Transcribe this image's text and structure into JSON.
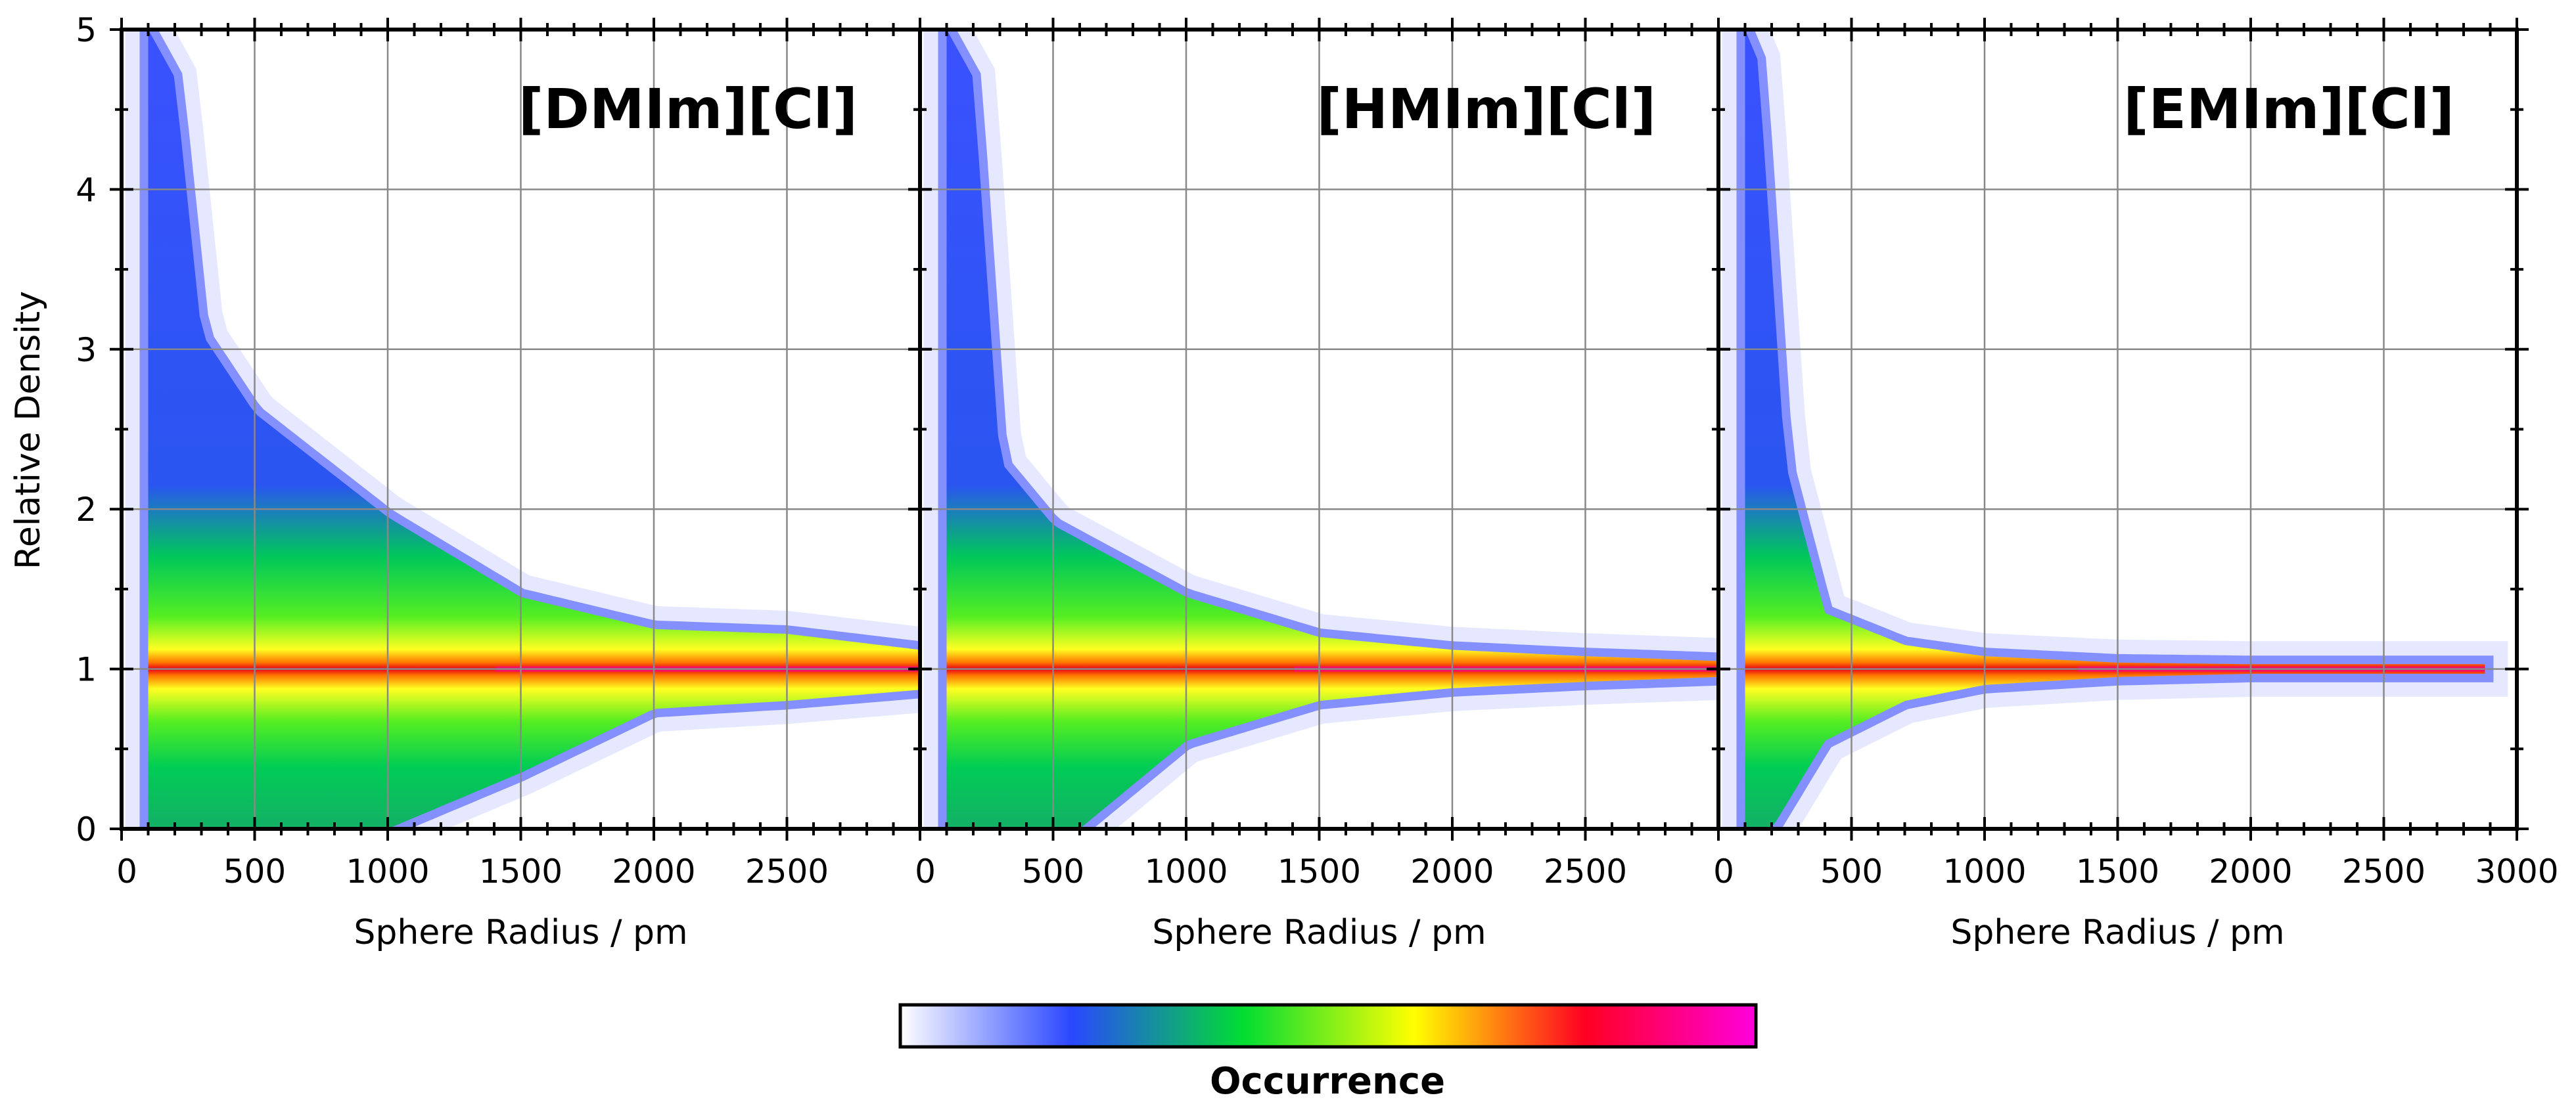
{
  "chart_data": [
    {
      "type": "heatmap",
      "title": "[DMIm][Cl]",
      "xlabel": "Sphere Radius / pm",
      "ylabel": "Relative Density",
      "xlim": [
        0,
        3000
      ],
      "ylim": [
        0,
        5
      ],
      "x_ticks": [
        0,
        500,
        1000,
        1500,
        2000,
        2500
      ],
      "x_tick_labels": [
        "0",
        "500",
        "1000",
        "1500",
        "2000",
        "2500"
      ],
      "y_ticks": [
        0,
        1,
        2,
        3,
        4,
        5
      ],
      "y_tick_labels": [
        "0",
        "1",
        "2",
        "3",
        "4",
        "5"
      ],
      "grid": true,
      "distribution": {
        "radius_range": [
          100,
          3000
        ],
        "center_relative_density": 1.0,
        "upper_edge": [
          [
            100,
            5.0
          ],
          [
            200,
            4.7
          ],
          [
            300,
            3.1
          ],
          [
            500,
            2.6
          ],
          [
            1000,
            1.95
          ],
          [
            1500,
            1.45
          ],
          [
            2000,
            1.25
          ],
          [
            2500,
            1.22
          ],
          [
            3000,
            1.12
          ]
        ],
        "lower_edge": [
          [
            100,
            0.0
          ],
          [
            1000,
            0.0
          ],
          [
            1500,
            0.35
          ],
          [
            2000,
            0.75
          ],
          [
            2500,
            0.8
          ],
          [
            3000,
            0.87
          ]
        ]
      }
    },
    {
      "type": "heatmap",
      "title": "[HMIm][Cl]",
      "xlabel": "Sphere Radius / pm",
      "ylabel": "",
      "xlim": [
        0,
        3000
      ],
      "ylim": [
        0,
        5
      ],
      "x_ticks": [
        0,
        500,
        1000,
        1500,
        2000,
        2500
      ],
      "x_tick_labels": [
        "0",
        "500",
        "1000",
        "1500",
        "2000",
        "2500"
      ],
      "grid": true,
      "distribution": {
        "radius_range": [
          100,
          3000
        ],
        "center_relative_density": 1.0,
        "upper_edge": [
          [
            100,
            5.0
          ],
          [
            200,
            4.7
          ],
          [
            300,
            2.3
          ],
          [
            500,
            1.9
          ],
          [
            1000,
            1.45
          ],
          [
            1500,
            1.2
          ],
          [
            2000,
            1.12
          ],
          [
            2500,
            1.08
          ],
          [
            3000,
            1.05
          ]
        ],
        "lower_edge": [
          [
            100,
            0.0
          ],
          [
            600,
            0.0
          ],
          [
            1000,
            0.55
          ],
          [
            1500,
            0.8
          ],
          [
            2000,
            0.88
          ],
          [
            2500,
            0.92
          ],
          [
            3000,
            0.95
          ]
        ]
      }
    },
    {
      "type": "heatmap",
      "title": "[EMIm][Cl]",
      "xlabel": "Sphere Radius / pm",
      "ylabel": "",
      "xlim": [
        0,
        3000
      ],
      "ylim": [
        0,
        5
      ],
      "x_ticks": [
        0,
        500,
        1000,
        1500,
        2000,
        2500,
        3000
      ],
      "x_tick_labels": [
        "0",
        "500",
        "1000",
        "1500",
        "2000",
        "2500",
        "3000"
      ],
      "grid": true,
      "distribution": {
        "radius_range": [
          100,
          2880
        ],
        "center_relative_density": 1.0,
        "upper_edge": [
          [
            100,
            5.0
          ],
          [
            150,
            4.8
          ],
          [
            250,
            2.3
          ],
          [
            400,
            1.35
          ],
          [
            700,
            1.15
          ],
          [
            1000,
            1.08
          ],
          [
            1500,
            1.04
          ],
          [
            2000,
            1.03
          ],
          [
            2880,
            1.03
          ]
        ],
        "lower_edge": [
          [
            100,
            0.0
          ],
          [
            200,
            0.0
          ],
          [
            400,
            0.55
          ],
          [
            700,
            0.8
          ],
          [
            1000,
            0.9
          ],
          [
            1500,
            0.95
          ],
          [
            2000,
            0.97
          ],
          [
            2880,
            0.97
          ]
        ]
      }
    }
  ],
  "colorbar": {
    "label": "Occurrence",
    "colors": [
      "#ffffff",
      "#2a47ff",
      "#00dd33",
      "#ffff00",
      "#ff0022",
      "#ff00dd"
    ]
  }
}
